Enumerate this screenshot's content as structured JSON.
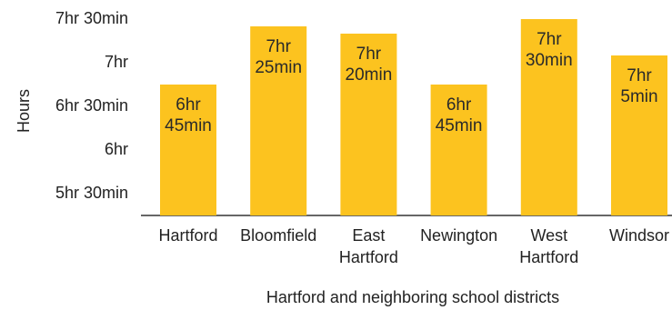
{
  "chart_data": {
    "type": "bar",
    "categories": [
      [
        "Hartford"
      ],
      [
        "Bloomfield"
      ],
      [
        "East",
        "Hartford"
      ],
      [
        "Newington"
      ],
      [
        "West",
        "Hartford"
      ],
      [
        "Windsor"
      ]
    ],
    "values_hours": [
      6.75,
      7.4167,
      7.3333,
      6.75,
      7.5,
      7.0833
    ],
    "data_labels": [
      [
        "6hr",
        "45min"
      ],
      [
        "7hr",
        "25min"
      ],
      [
        "7hr",
        "20min"
      ],
      [
        "6hr",
        "45min"
      ],
      [
        "7hr",
        "30min"
      ],
      [
        "7hr",
        "5min"
      ]
    ],
    "y_ticks": [
      {
        "value": 5.5,
        "label": "5hr 30min"
      },
      {
        "value": 6.0,
        "label": "6hr"
      },
      {
        "value": 6.5,
        "label": "6hr 30min"
      },
      {
        "value": 7.0,
        "label": "7hr"
      },
      {
        "value": 7.5,
        "label": "7hr 30min"
      }
    ],
    "ylim": [
      5.25,
      7.5
    ],
    "ylabel": "Hours",
    "xlabel": "Hartford and neighboring school districts",
    "bar_color": "#FCC31F",
    "axis_color": "#333333",
    "grid": false,
    "legend": "none"
  }
}
